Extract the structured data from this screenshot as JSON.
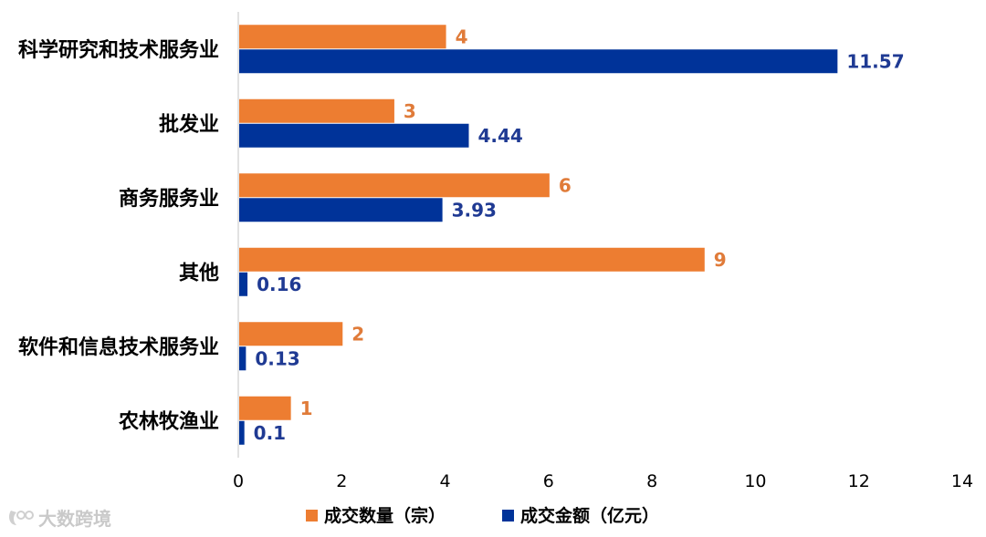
{
  "chart_data": {
    "type": "bar",
    "orientation": "horizontal",
    "categories": [
      "科学研究和技术服务业",
      "批发业",
      "商务服务业",
      "其他",
      "软件和信息技术服务业",
      "农林牧渔业"
    ],
    "series": [
      {
        "name": "成交数量（宗）",
        "color": "#ED7D31",
        "values": [
          4,
          3,
          6,
          9,
          2,
          1
        ],
        "labels": [
          "4",
          "3",
          "6",
          "9",
          "2",
          "1"
        ]
      },
      {
        "name": "成交金额（亿元）",
        "color": "#003399",
        "values": [
          11.57,
          4.44,
          3.93,
          0.16,
          0.13,
          0.1
        ],
        "labels": [
          "11.57",
          "4.44",
          "3.93",
          "0.16",
          "0.13",
          "0.1"
        ]
      }
    ],
    "xlim": [
      0,
      14
    ],
    "xticks": [
      "0",
      "2",
      "4",
      "6",
      "8",
      "10",
      "12",
      "14"
    ],
    "legend_position": "bottom",
    "title": "",
    "xlabel": "",
    "ylabel": ""
  },
  "watermark": {
    "text": "大数跨境"
  }
}
